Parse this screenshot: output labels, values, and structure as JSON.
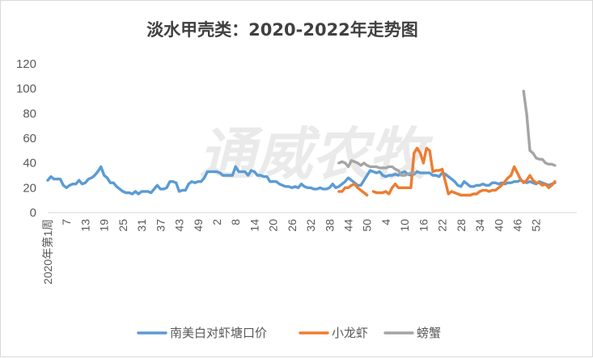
{
  "chart_data": {
    "type": "line",
    "title": "淡水甲壳类：2020-2022年走势图",
    "watermark": "通威农牧",
    "xlabel": "",
    "ylabel": "",
    "ylim": [
      0,
      120
    ],
    "yticks": [
      "0",
      "20",
      "40",
      "60",
      "80",
      "100",
      "120"
    ],
    "grid": false,
    "legend_position": "bottom",
    "first_x_label": "2020年第1周",
    "x_tick_labels": [
      "7",
      "13",
      "19",
      "25",
      "31",
      "37",
      "43",
      "49",
      "2",
      "8",
      "14",
      "20",
      "26",
      "32",
      "38",
      "44",
      "50",
      "4",
      "10",
      "16",
      "22",
      "28",
      "34",
      "40",
      "46",
      "52"
    ],
    "x_index_range": [
      1,
      170
    ],
    "series": [
      {
        "name": "南美白对虾塘口价",
        "color": "#5b9bd5",
        "x": [
          1,
          2,
          3,
          4,
          5,
          6,
          7,
          8,
          9,
          10,
          11,
          12,
          13,
          14,
          15,
          16,
          17,
          18,
          19,
          20,
          21,
          22,
          23,
          24,
          25,
          26,
          27,
          28,
          29,
          30,
          31,
          32,
          33,
          34,
          35,
          36,
          37,
          38,
          39,
          40,
          41,
          42,
          43,
          44,
          45,
          46,
          47,
          48,
          49,
          50,
          51,
          52,
          53,
          54,
          55,
          56,
          57,
          58,
          59,
          60,
          61,
          62,
          63,
          64,
          65,
          66,
          67,
          68,
          69,
          70,
          71,
          72,
          73,
          74,
          75,
          76,
          77,
          78,
          79,
          80,
          81,
          82,
          83,
          84,
          85,
          86,
          87,
          88,
          89,
          90,
          91,
          92,
          93,
          94,
          95,
          96,
          97,
          98,
          99,
          100,
          101,
          102,
          103,
          104,
          105,
          106,
          107,
          108,
          109,
          110,
          111,
          112,
          113,
          114,
          115,
          116,
          117,
          118,
          119,
          120,
          121,
          122,
          123,
          124,
          125,
          126,
          127,
          128,
          129,
          130,
          131,
          132,
          133,
          134,
          135,
          136,
          137,
          138,
          139,
          140,
          141,
          142,
          143,
          144,
          145,
          146,
          147,
          148,
          149,
          150,
          151,
          152,
          153,
          154,
          155,
          156,
          157,
          158,
          159,
          160,
          161,
          162,
          163
        ],
        "values": [
          26,
          29,
          27,
          27,
          27,
          22,
          20,
          22,
          23,
          23,
          26,
          23,
          24,
          27,
          28,
          30,
          33,
          37,
          30,
          28,
          24,
          24,
          21,
          19,
          17,
          16,
          16,
          15,
          17,
          15,
          17,
          17,
          17,
          16,
          19,
          22,
          19,
          19,
          20,
          25,
          25,
          24,
          17,
          18,
          18,
          23,
          25,
          24,
          25,
          25,
          28,
          33,
          33,
          33,
          33,
          32,
          30,
          30,
          30,
          30,
          37,
          33,
          33,
          33,
          30,
          34,
          33,
          30,
          30,
          29,
          29,
          25,
          25,
          25,
          23,
          22,
          21,
          21,
          20,
          21,
          20,
          23,
          21,
          20,
          20,
          19,
          19,
          20,
          19,
          19,
          20,
          23,
          20,
          21,
          23,
          25,
          28,
          26,
          24,
          22,
          22,
          26,
          30,
          34,
          33,
          32,
          33,
          30,
          29,
          30,
          30,
          31,
          30,
          32,
          33,
          31,
          30,
          31,
          33,
          32,
          32,
          32,
          32,
          30,
          30,
          29,
          32,
          31,
          29,
          27,
          25,
          22,
          21,
          25,
          23,
          21,
          21,
          22,
          22,
          23,
          22,
          22,
          24,
          24,
          23,
          24,
          23,
          24,
          24,
          25,
          25,
          26,
          25,
          24,
          25,
          24,
          23,
          25,
          24,
          23,
          22,
          23,
          24
        ]
      },
      {
        "name": "小龙虾",
        "color": "#ed7d31",
        "segments": [
          {
            "x": [
              94,
              95,
              96,
              97,
              98,
              99,
              100,
              101,
              102,
              103
            ],
            "values": [
              17,
              17,
              20,
              20,
              22,
              23,
              20,
              18,
              16,
              14
            ]
          },
          {
            "x": [
              105,
              106,
              107,
              108,
              109,
              110,
              111,
              112,
              113,
              114,
              115,
              116,
              117,
              118,
              119,
              120,
              121,
              122,
              123,
              124,
              125,
              126,
              127,
              128,
              129,
              130,
              131,
              132,
              133,
              134,
              135,
              136,
              137,
              138,
              139,
              140,
              141,
              142,
              143,
              144,
              145,
              146,
              147,
              148,
              149,
              150,
              151,
              152,
              153,
              154,
              155,
              156,
              157,
              158,
              159,
              160,
              161,
              162,
              163
            ],
            "values": [
              17,
              16,
              16,
              16,
              17,
              15,
              20,
              23,
              20,
              20,
              20,
              20,
              20,
              48,
              52,
              48,
              40,
              52,
              50,
              33,
              34,
              34,
              35,
              25,
              15,
              17,
              16,
              15,
              14,
              14,
              14,
              14,
              15,
              15,
              17,
              18,
              18,
              17,
              18,
              18,
              20,
              22,
              25,
              28,
              30,
              37,
              32,
              27,
              24,
              26,
              30,
              26,
              24,
              24,
              22,
              23,
              20,
              22,
              25
            ]
          }
        ]
      },
      {
        "name": "螃蟹",
        "color": "#a5a5a5",
        "segments": [
          {
            "x": [
              94,
              95,
              96,
              97,
              98,
              99,
              100,
              101,
              102,
              103,
              104,
              105,
              106,
              107,
              108,
              109,
              110,
              111,
              112,
              113,
              114,
              115,
              116,
              117,
              118
            ],
            "values": [
              40,
              41,
              40,
              37,
              42,
              41,
              40,
              38,
              40,
              38,
              37,
              37,
              37,
              36,
              36,
              36,
              37,
              37,
              35,
              34,
              30,
              30,
              31,
              32,
              32
            ]
          },
          {
            "x": [
              153,
              154,
              155,
              156,
              157,
              158,
              159,
              160,
              161,
              162,
              163
            ],
            "values": [
              98,
              79,
              50,
              48,
              44,
              43,
              43,
              40,
              39,
              39,
              38
            ]
          }
        ]
      }
    ]
  }
}
